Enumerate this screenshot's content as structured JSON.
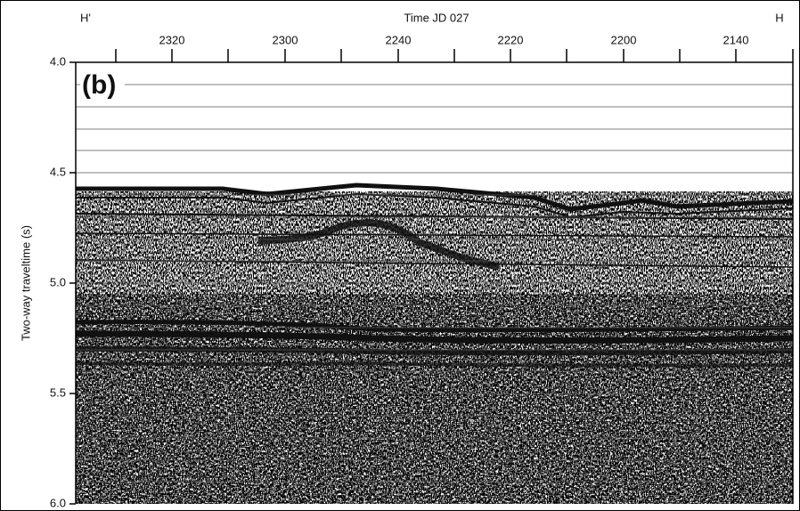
{
  "figure": {
    "panel_label": "(b)",
    "top_title": "Time JD 027",
    "left_end": "H'",
    "right_end": "H",
    "x_tick_labels": [
      "2320",
      "2300",
      "2240",
      "2220",
      "2200",
      "2140"
    ],
    "y_axis_title": "Two-way traveltime (s)",
    "y_tick_labels": [
      "4.0",
      "4.5",
      "5.0",
      "5.5",
      "6.0"
    ]
  }
}
